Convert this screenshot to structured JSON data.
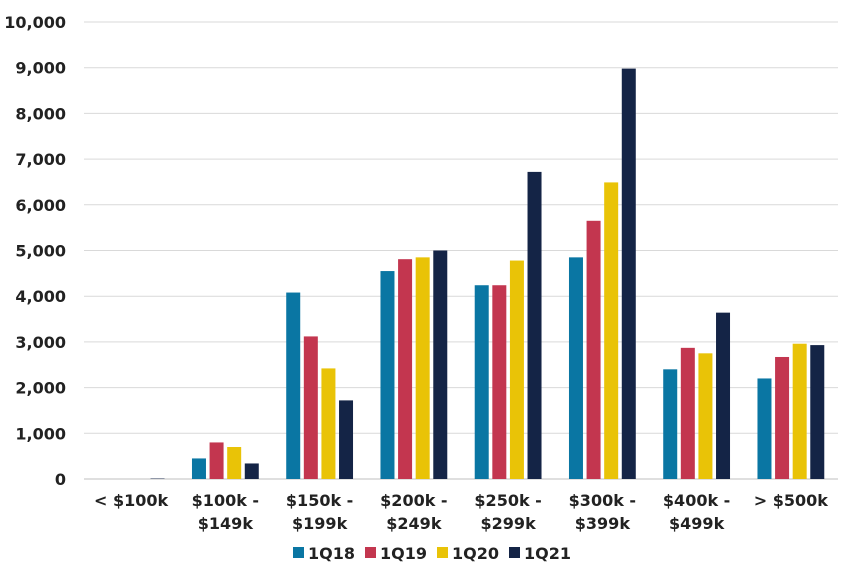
{
  "chart_data": {
    "type": "bar",
    "categories": [
      [
        "< $100k"
      ],
      [
        "$100k -",
        "$149k"
      ],
      [
        "$150k -",
        "$199k"
      ],
      [
        "$200k -",
        "$249k"
      ],
      [
        "$250k -",
        "$299k"
      ],
      [
        "$300k -",
        "$399k"
      ],
      [
        "$400k -",
        "$499k"
      ],
      [
        "> $500k"
      ]
    ],
    "series": [
      {
        "name": "1Q18",
        "color": "#0A76A3",
        "values": [
          0,
          450,
          4080,
          4550,
          4240,
          4850,
          2400,
          2200
        ]
      },
      {
        "name": "1Q19",
        "color": "#C3364F",
        "values": [
          0,
          800,
          3120,
          4810,
          4240,
          5650,
          2870,
          2670
        ]
      },
      {
        "name": "1Q20",
        "color": "#E9C307",
        "values": [
          0,
          700,
          2420,
          4850,
          4780,
          6490,
          2750,
          2960
        ]
      },
      {
        "name": "1Q21",
        "color": "#142446",
        "values": [
          10,
          340,
          1720,
          5000,
          6720,
          8980,
          3640,
          2930
        ]
      }
    ],
    "yticks": [
      "0",
      "1,000",
      "2,000",
      "3,000",
      "4,000",
      "5,000",
      "6,000",
      "7,000",
      "8,000",
      "9,000",
      "10,000"
    ],
    "ylim": [
      0,
      10000
    ],
    "grid": true,
    "legend": "bottom",
    "title": "",
    "xlabel": "",
    "ylabel": ""
  }
}
